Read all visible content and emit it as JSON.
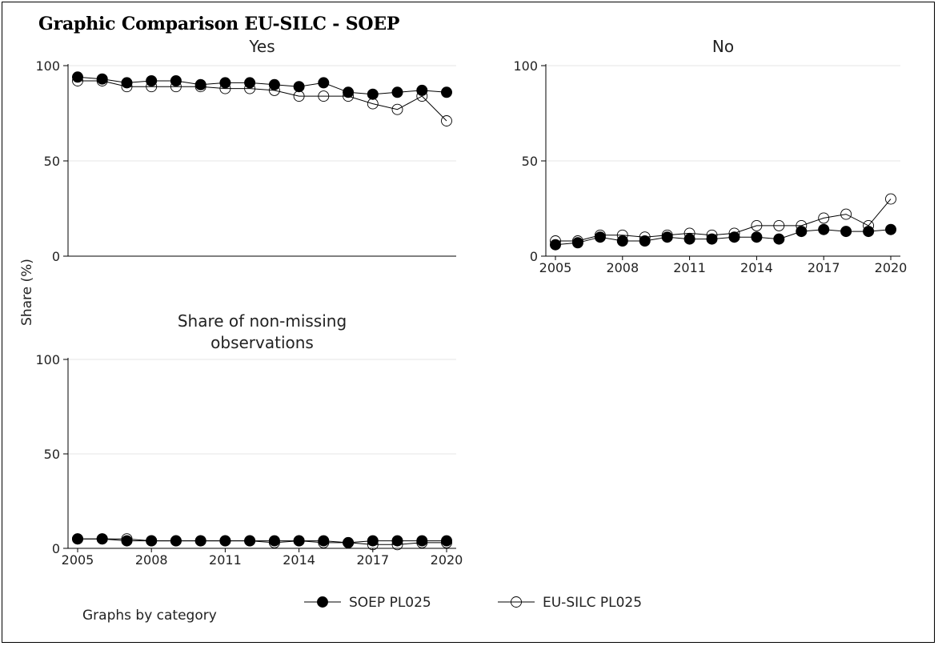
{
  "title": "Graphic Comparison EU-SILC - SOEP",
  "chart_data": [
    {
      "type": "line",
      "title": "Yes",
      "x": [
        2005,
        2006,
        2007,
        2008,
        2009,
        2010,
        2011,
        2012,
        2013,
        2014,
        2015,
        2016,
        2017,
        2018,
        2019,
        2020
      ],
      "x_ticks": [
        "2005",
        "2008",
        "2011",
        "2014",
        "2017",
        "2020"
      ],
      "y_ticks": [
        "0",
        "50",
        "100"
      ],
      "ylim": [
        0,
        100
      ],
      "show_x_ticks": false,
      "series": [
        {
          "name": "SOEP PL025",
          "marker": "filled",
          "values": [
            94,
            93,
            91,
            92,
            92,
            90,
            91,
            91,
            90,
            89,
            91,
            86,
            85,
            86,
            87,
            86
          ]
        },
        {
          "name": "EU-SILC PL025",
          "marker": "hollow",
          "values": [
            92,
            92,
            89,
            89,
            89,
            89,
            88,
            88,
            87,
            84,
            84,
            84,
            80,
            77,
            84,
            71
          ]
        }
      ]
    },
    {
      "type": "line",
      "title": "No",
      "x": [
        2005,
        2006,
        2007,
        2008,
        2009,
        2010,
        2011,
        2012,
        2013,
        2014,
        2015,
        2016,
        2017,
        2018,
        2019,
        2020
      ],
      "x_ticks": [
        "2005",
        "2008",
        "2011",
        "2014",
        "2017",
        "2020"
      ],
      "y_ticks": [
        "0",
        "50",
        "100"
      ],
      "ylim": [
        0,
        100
      ],
      "show_x_ticks": true,
      "series": [
        {
          "name": "SOEP PL025",
          "marker": "filled",
          "values": [
            6,
            7,
            10,
            8,
            8,
            10,
            9,
            9,
            10,
            10,
            9,
            13,
            14,
            13,
            13,
            14
          ]
        },
        {
          "name": "EU-SILC PL025",
          "marker": "hollow",
          "values": [
            8,
            8,
            11,
            11,
            10,
            11,
            12,
            11,
            12,
            16,
            16,
            16,
            20,
            22,
            16,
            30
          ]
        }
      ]
    },
    {
      "type": "line",
      "title": "Share of non-missing observations",
      "title_lines": [
        "Share of non-missing",
        "observations"
      ],
      "x": [
        2005,
        2006,
        2007,
        2008,
        2009,
        2010,
        2011,
        2012,
        2013,
        2014,
        2015,
        2016,
        2017,
        2018,
        2019,
        2020
      ],
      "x_ticks": [
        "2005",
        "2008",
        "2011",
        "2014",
        "2017",
        "2020"
      ],
      "y_ticks": [
        "0",
        "50",
        "100"
      ],
      "ylim": [
        0,
        100
      ],
      "show_x_ticks": true,
      "series": [
        {
          "name": "SOEP PL025",
          "marker": "filled",
          "values": [
            5,
            5,
            4,
            4,
            4,
            4,
            4,
            4,
            4,
            4,
            4,
            3,
            4,
            4,
            4,
            4
          ]
        },
        {
          "name": "EU-SILC PL025",
          "marker": "hollow",
          "values": [
            5,
            5,
            5,
            4,
            4,
            4,
            4,
            4,
            3,
            4,
            3,
            3,
            2,
            2,
            3,
            3
          ]
        }
      ]
    }
  ],
  "ylabel": "Share (%)",
  "note": "Graphs by category",
  "legend": [
    {
      "label": "SOEP PL025",
      "marker": "filled"
    },
    {
      "label": "EU-SILC PL025",
      "marker": "hollow"
    }
  ],
  "colors": {
    "line": "#000000",
    "grid": "#e6e6e6",
    "background": "#ffffff"
  }
}
